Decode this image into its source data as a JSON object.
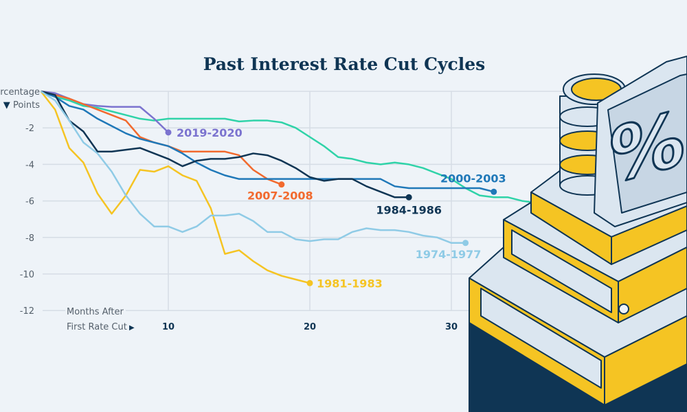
{
  "chart_data": {
    "type": "line",
    "title": "Past Interest Rate Cut Cycles",
    "ylabel": "Percentage Points",
    "xlabel": "Months After First Rate Cut",
    "xlim": [
      0,
      40
    ],
    "ylim": [
      -12,
      0
    ],
    "yticks": [
      "-2",
      "-4",
      "-6",
      "-8",
      "-10",
      "-12"
    ],
    "xticks": [
      "10",
      "20",
      "30"
    ],
    "grid": true,
    "legend": "direct labels at line ends",
    "series": [
      {
        "name": "2019-2020",
        "color": "#7b73cf",
        "x": [
          1,
          2,
          3,
          4,
          5,
          6,
          7,
          8,
          9,
          10
        ],
        "values": [
          0,
          -0.1,
          -0.4,
          -0.7,
          -0.8,
          -0.85,
          -0.85,
          -0.85,
          -1.5,
          -2.25
        ]
      },
      {
        "name": "2007-2008",
        "color": "#f26a2e",
        "x": [
          1,
          2,
          3,
          4,
          5,
          6,
          7,
          8,
          9,
          10,
          11,
          12,
          13,
          14,
          15,
          16,
          17,
          18
        ],
        "values": [
          0,
          -0.2,
          -0.4,
          -0.7,
          -1.0,
          -1.3,
          -1.6,
          -2.5,
          -2.8,
          -3.0,
          -3.3,
          -3.3,
          -3.3,
          -3.3,
          -3.5,
          -4.3,
          -4.8,
          -5.1
        ]
      },
      {
        "name": "2000-2003",
        "color": "#1f78b8",
        "x": [
          1,
          2,
          3,
          4,
          5,
          6,
          7,
          8,
          9,
          10,
          11,
          12,
          13,
          14,
          15,
          16,
          17,
          18,
          19,
          20,
          21,
          22,
          23,
          24,
          25,
          26,
          27,
          28,
          29,
          30,
          31,
          32,
          33
        ],
        "values": [
          0,
          -0.3,
          -0.8,
          -1.0,
          -1.5,
          -1.9,
          -2.3,
          -2.6,
          -2.8,
          -3.0,
          -3.4,
          -3.9,
          -4.3,
          -4.6,
          -4.8,
          -4.8,
          -4.8,
          -4.8,
          -4.8,
          -4.8,
          -4.8,
          -4.8,
          -4.8,
          -4.8,
          -4.8,
          -5.2,
          -5.3,
          -5.3,
          -5.3,
          -5.3,
          -5.3,
          -5.3,
          -5.5
        ]
      },
      {
        "name": "1984-1986",
        "color": "#0f3554",
        "x": [
          1,
          2,
          3,
          4,
          5,
          6,
          7,
          8,
          9,
          10,
          11,
          12,
          13,
          14,
          15,
          16,
          17,
          18,
          19,
          20,
          21,
          22,
          23,
          24,
          25,
          26,
          27
        ],
        "values": [
          0,
          -0.2,
          -1.6,
          -2.2,
          -3.3,
          -3.3,
          -3.2,
          -3.1,
          -3.4,
          -3.7,
          -4.1,
          -3.8,
          -3.7,
          -3.7,
          -3.6,
          -3.4,
          -3.5,
          -3.8,
          -4.2,
          -4.7,
          -4.9,
          -4.8,
          -4.8,
          -5.2,
          -5.5,
          -5.8,
          -5.8
        ]
      },
      {
        "name": "1981-1983",
        "color": "#f5c423",
        "x": [
          1,
          2,
          3,
          4,
          5,
          6,
          7,
          8,
          9,
          10,
          11,
          12,
          13,
          14,
          15,
          16,
          17,
          18,
          19,
          20
        ],
        "values": [
          0,
          -1.0,
          -3.1,
          -3.9,
          -5.6,
          -6.7,
          -5.7,
          -4.3,
          -4.4,
          -4.1,
          -4.6,
          -4.9,
          -6.4,
          -8.9,
          -8.7,
          -9.3,
          -9.8,
          -10.1,
          -10.3,
          -10.5
        ]
      },
      {
        "name": "1974-1977",
        "color": "#8fcbe6",
        "x": [
          1,
          2,
          3,
          4,
          5,
          6,
          7,
          8,
          9,
          10,
          11,
          12,
          13,
          14,
          15,
          16,
          17,
          18,
          19,
          20,
          21,
          22,
          23,
          24,
          25,
          26,
          27,
          28,
          29,
          30,
          31
        ],
        "values": [
          0,
          -0.5,
          -1.6,
          -2.8,
          -3.4,
          -4.4,
          -5.7,
          -6.7,
          -7.4,
          -7.4,
          -7.7,
          -7.4,
          -6.8,
          -6.8,
          -6.7,
          -7.1,
          -7.7,
          -7.7,
          -8.1,
          -8.2,
          -8.1,
          -8.1,
          -7.7,
          -7.5,
          -7.6,
          -7.6,
          -7.7,
          -7.9,
          -8.0,
          -8.3,
          -8.3
        ]
      },
      {
        "color": "#2fd3a8",
        "x": [
          1,
          2,
          3,
          4,
          5,
          6,
          7,
          8,
          9,
          10,
          11,
          12,
          13,
          14,
          15,
          16,
          17,
          18,
          19,
          20,
          21,
          22,
          23,
          24,
          25,
          26,
          27,
          28,
          29,
          30,
          31,
          32,
          33,
          34,
          35,
          36
        ],
        "values": [
          0,
          -0.3,
          -0.5,
          -0.8,
          -0.9,
          -1.1,
          -1.3,
          -1.5,
          -1.6,
          -1.5,
          -1.5,
          -1.5,
          -1.5,
          -1.5,
          -1.65,
          -1.6,
          -1.6,
          -1.7,
          -2.0,
          -2.5,
          -3.0,
          -3.6,
          -3.7,
          -3.9,
          -4.0,
          -3.9,
          -4.0,
          -4.2,
          -4.5,
          -4.8,
          -5.3,
          -5.7,
          -5.8,
          -5.8,
          -6.0,
          -6.1
        ]
      }
    ]
  },
  "illustration": {
    "symbol": "%"
  }
}
